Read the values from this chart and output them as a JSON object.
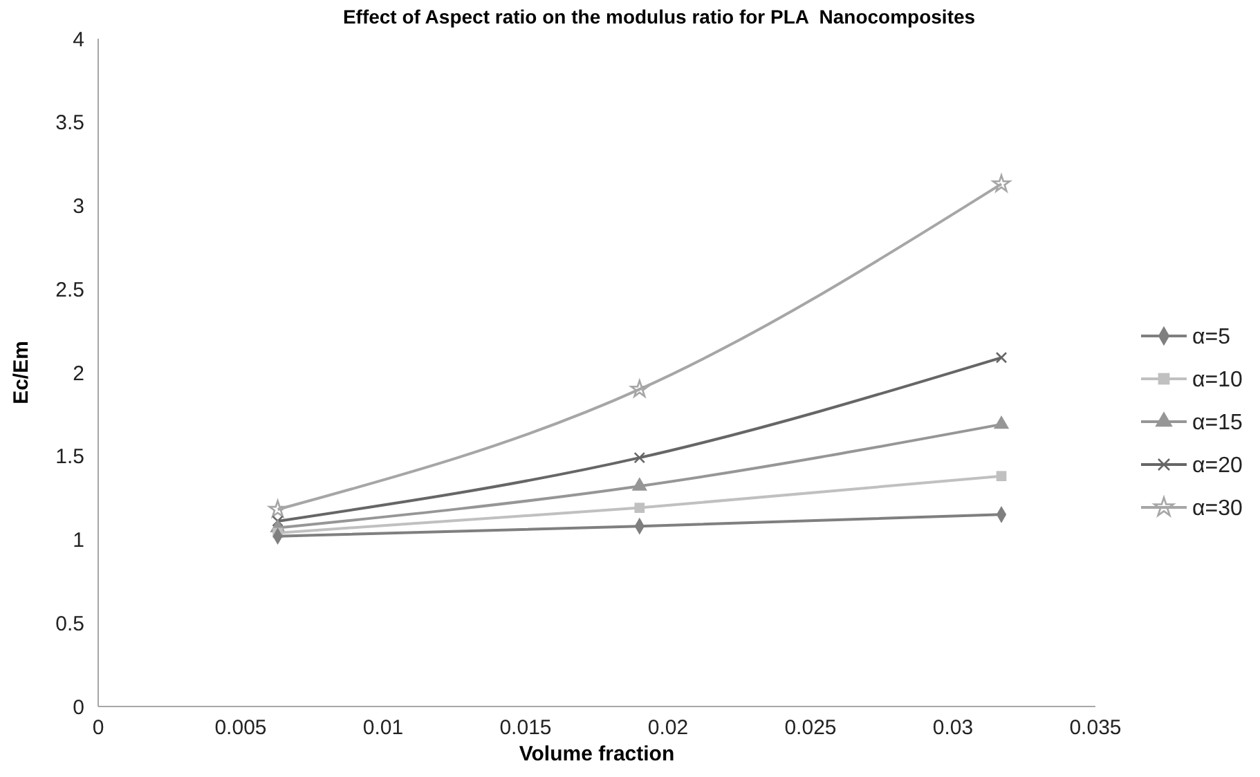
{
  "chart_data": {
    "type": "line",
    "title": "Effect of Aspect ratio on the modulus ratio for PLA  Nanocomposites",
    "xlabel": "Volume fraction",
    "ylabel": "Ec/Em",
    "x": [
      0.0063,
      0.019,
      0.0317
    ],
    "series": [
      {
        "name": "α=5",
        "color": "#7f7f7f",
        "marker": "diamond",
        "values": [
          1.02,
          1.08,
          1.15
        ]
      },
      {
        "name": "α=10",
        "color": "#c0c0c0",
        "marker": "square",
        "values": [
          1.04,
          1.19,
          1.38
        ]
      },
      {
        "name": "α=15",
        "color": "#969696",
        "marker": "triangle",
        "values": [
          1.07,
          1.32,
          1.69
        ]
      },
      {
        "name": "α=20",
        "color": "#666666",
        "marker": "cross",
        "values": [
          1.11,
          1.49,
          2.09
        ]
      },
      {
        "name": "α=30",
        "color": "#a6a6a6",
        "marker": "star",
        "values": [
          1.18,
          1.9,
          3.13
        ]
      }
    ],
    "xlim": [
      0,
      0.035
    ],
    "xticks": [
      0,
      0.005,
      0.01,
      0.015,
      0.02,
      0.025,
      0.03,
      0.035
    ],
    "ylim": [
      0,
      4
    ],
    "yticks": [
      0,
      0.5,
      1,
      1.5,
      2,
      2.5,
      3,
      3.5,
      4
    ],
    "grid": false,
    "legend": "right",
    "line_style": "solid"
  }
}
